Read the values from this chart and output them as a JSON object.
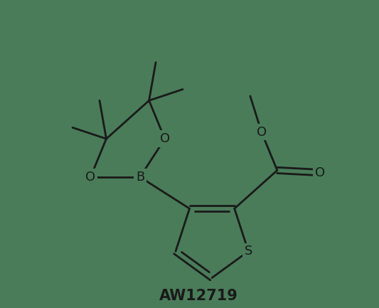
{
  "bg_color": "#4a7c59",
  "line_color": "#1a1a1a",
  "label_color": "#1a1a1a",
  "line_width": 2.0,
  "font_size_atom": 13,
  "font_size_label": 15,
  "label_text": "AW12719",
  "xlim": [
    -4.0,
    4.2
  ],
  "ylim": [
    -3.0,
    3.8
  ]
}
